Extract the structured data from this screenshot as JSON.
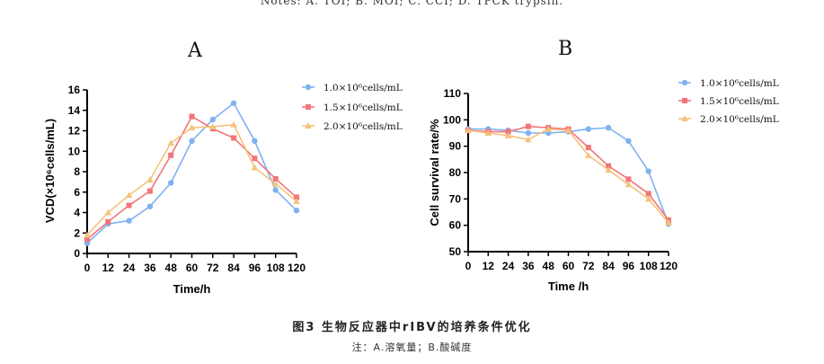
{
  "top_note": "Notes: A. TOI; B. MOI; C. CCI; D. TPCK trypsin.",
  "figure": {
    "title": "图3   生物反应器中rIBV的培养条件优化",
    "note": "注：A.溶氧量；B.酸碱度"
  },
  "colors": {
    "s1": "#7fb2f0",
    "s2": "#f27478",
    "s3": "#f6c27a"
  },
  "chart_data": [
    {
      "panel_label": "A",
      "type": "line",
      "xlabel": "Time/h",
      "ylabel": "VCD(×10⁶cells/mL)",
      "x": [
        0,
        12,
        24,
        36,
        48,
        60,
        72,
        84,
        96,
        108,
        120
      ],
      "x_ticks": [
        "0",
        "12",
        "24",
        "36",
        "48",
        "60",
        "72",
        "84",
        "96",
        "108",
        "120"
      ],
      "ylim": [
        0,
        16
      ],
      "y_ticks": [
        "0",
        "2",
        "4",
        "6",
        "8",
        "10",
        "12",
        "14",
        "16"
      ],
      "legend_position": "top-right",
      "series": [
        {
          "name": "1.0×10⁶cells/mL",
          "marker": "circle",
          "values": [
            1.0,
            2.9,
            3.2,
            4.6,
            6.9,
            11.0,
            13.1,
            14.7,
            11.0,
            6.2,
            4.2
          ]
        },
        {
          "name": "1.5×10⁶cells/mL",
          "marker": "square",
          "values": [
            1.4,
            3.1,
            4.7,
            6.1,
            9.6,
            13.4,
            12.2,
            11.3,
            9.3,
            7.3,
            5.5
          ]
        },
        {
          "name": "2.0×10⁶cells/mL",
          "marker": "triangle",
          "values": [
            1.8,
            4.0,
            5.7,
            7.2,
            10.8,
            12.3,
            12.4,
            12.6,
            8.4,
            6.8,
            5.1
          ]
        }
      ]
    },
    {
      "panel_label": "B",
      "type": "line",
      "xlabel": "Time /h",
      "ylabel": "Cell survival rate/%",
      "x": [
        0,
        12,
        24,
        36,
        48,
        60,
        72,
        84,
        96,
        108,
        120
      ],
      "x_ticks": [
        "0",
        "12",
        "24",
        "36",
        "48",
        "60",
        "72",
        "84",
        "96",
        "108",
        "120"
      ],
      "ylim": [
        50,
        110
      ],
      "y_ticks": [
        "50",
        "60",
        "70",
        "80",
        "90",
        "100",
        "110"
      ],
      "legend_position": "top-right",
      "series": [
        {
          "name": "1.0×10⁶cells/mL",
          "marker": "circle",
          "values": [
            96.5,
            96.5,
            96.0,
            95.0,
            95.0,
            95.5,
            96.5,
            97.0,
            92.0,
            80.5,
            60.5
          ]
        },
        {
          "name": "1.5×10⁶cells/mL",
          "marker": "square",
          "values": [
            96.0,
            95.5,
            95.5,
            97.5,
            97.0,
            96.5,
            89.5,
            82.5,
            77.5,
            72.0,
            62.0
          ]
        },
        {
          "name": "2.0×10⁶cells/mL",
          "marker": "triangle",
          "values": [
            96.0,
            95.0,
            94.0,
            92.5,
            96.5,
            96.0,
            86.5,
            81.0,
            75.5,
            70.0,
            61.0
          ]
        }
      ]
    }
  ]
}
